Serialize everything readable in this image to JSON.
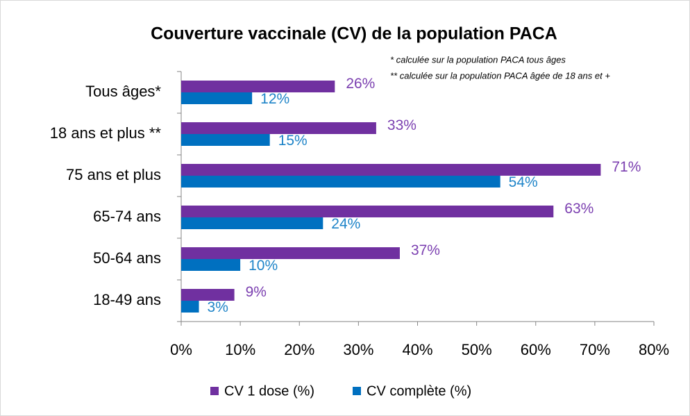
{
  "chart_data": {
    "type": "hbar",
    "title": "Couverture vaccinale (CV) de la population PACA",
    "notes": [
      "* calculée sur la population PACA tous âges",
      "** calculée sur la population PACA âgée de 18 ans et +"
    ],
    "categories": [
      "Tous âges*",
      "18 ans et plus **",
      "75 ans et plus",
      "65-74 ans",
      "50-64 ans",
      "18-49 ans"
    ],
    "series": [
      {
        "name": "CV 1 dose (%)",
        "color": "#7030a0",
        "label_color": "#7b3fb0",
        "values": [
          26,
          33,
          71,
          63,
          37,
          9
        ],
        "value_labels": [
          "26%",
          "33%",
          "71%",
          "63%",
          "37%",
          "9%"
        ]
      },
      {
        "name": "CV complète (%)",
        "color": "#0070c0",
        "label_color": "#1e84c8",
        "values": [
          12,
          15,
          54,
          24,
          10,
          3
        ],
        "value_labels": [
          "12%",
          "15%",
          "54%",
          "24%",
          "10%",
          "3%"
        ]
      }
    ],
    "xlim": [
      0,
      80
    ],
    "xticks": [
      {
        "value": 0,
        "label": "0%"
      },
      {
        "value": 10,
        "label": "10%"
      },
      {
        "value": 20,
        "label": "20%"
      },
      {
        "value": 30,
        "label": "30%"
      },
      {
        "value": 40,
        "label": "40%"
      },
      {
        "value": 50,
        "label": "50%"
      },
      {
        "value": 60,
        "label": "60%"
      },
      {
        "value": 70,
        "label": "70%"
      },
      {
        "value": 80,
        "label": "80%"
      }
    ],
    "legend": "bottom"
  }
}
